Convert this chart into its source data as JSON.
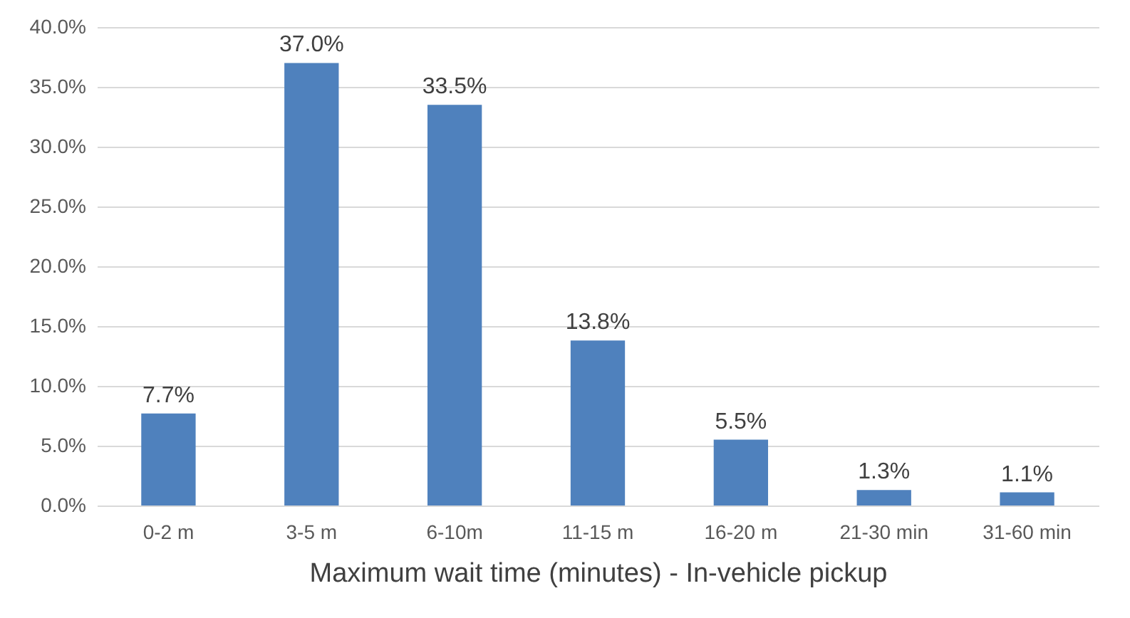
{
  "chart_data": {
    "type": "bar",
    "xlabel": "Maximum wait time (minutes) - In-vehicle pickup",
    "categories": [
      "0-2 m",
      "3-5 m",
      "6-10m",
      "11-15 m",
      "16-20 m",
      "21-30 min",
      "31-60 min"
    ],
    "values": [
      7.7,
      37.0,
      33.5,
      13.8,
      5.5,
      1.3,
      1.1
    ],
    "value_labels": [
      "7.7%",
      "37.0%",
      "33.5%",
      "13.8%",
      "5.5%",
      "1.3%",
      "1.1%"
    ],
    "color": "#4f81bd",
    "ylim": [
      0,
      40
    ],
    "yticks": [
      {
        "value": 0,
        "label": "0.0%"
      },
      {
        "value": 5,
        "label": "5.0%"
      },
      {
        "value": 10,
        "label": "10.0%"
      },
      {
        "value": 15,
        "label": "15.0%"
      },
      {
        "value": 20,
        "label": "20.0%"
      },
      {
        "value": 25,
        "label": "25.0%"
      },
      {
        "value": 30,
        "label": "30.0%"
      },
      {
        "value": 35,
        "label": "35.0%"
      },
      {
        "value": 40,
        "label": "40.0%"
      }
    ],
    "grid": "y"
  }
}
